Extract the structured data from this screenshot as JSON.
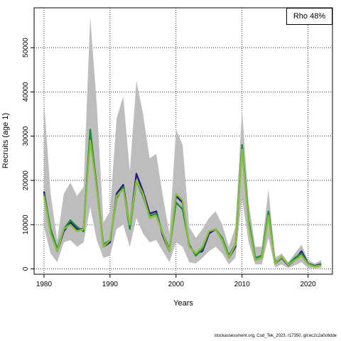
{
  "chart_data": {
    "type": "line",
    "xlabel": "Years",
    "ylabel": "Recruits (age 1)",
    "xlim": [
      1978.5,
      2023.7
    ],
    "ylim": [
      -1200,
      59000
    ],
    "xticks": [
      1980,
      1990,
      2000,
      2010,
      2020
    ],
    "yticks": [
      0,
      10000,
      20000,
      30000,
      40000,
      50000
    ],
    "grid": true,
    "legend": {
      "position": "top-right",
      "text": "Rho 48%"
    },
    "x": [
      1980,
      1981,
      1982,
      1983,
      1984,
      1985,
      1986,
      1987,
      1988,
      1989,
      1990,
      1991,
      1992,
      1993,
      1994,
      1995,
      1996,
      1997,
      1998,
      1999,
      2000,
      2001,
      2002,
      2003,
      2004,
      2005,
      2006,
      2007,
      2008,
      2009,
      2010,
      2011,
      2012,
      2013,
      2014,
      2015,
      2016,
      2017,
      2018,
      2019,
      2020,
      2021,
      2022
    ],
    "confidence_band": {
      "upper": [
        38000,
        17000,
        6500,
        17000,
        19500,
        16500,
        18500,
        57000,
        37000,
        10500,
        13000,
        34000,
        39000,
        22000,
        42500,
        35000,
        25000,
        26000,
        16500,
        8000,
        31500,
        28000,
        9500,
        7000,
        9000,
        11500,
        13000,
        10000,
        5000,
        9500,
        36000,
        15000,
        5000,
        5000,
        18000,
        2500,
        3500,
        1500,
        3500,
        5500,
        2000,
        1200,
        2000
      ],
      "lower": [
        9500,
        3500,
        1500,
        6000,
        6500,
        5000,
        6000,
        14000,
        6500,
        2500,
        3000,
        9000,
        10000,
        5000,
        11500,
        8000,
        6000,
        6500,
        4000,
        1500,
        6000,
        5000,
        1500,
        1200,
        2500,
        4000,
        5000,
        3500,
        1000,
        2500,
        16000,
        6000,
        1000,
        1000,
        7000,
        300,
        1000,
        200,
        800,
        1500,
        200,
        100,
        200
      ]
    },
    "series": [
      {
        "color": "#2a1b7c",
        "values": [
          17500,
          8500,
          4000,
          8500,
          10500,
          9000,
          9000,
          30500,
          18500,
          5000,
          6000,
          17000,
          19000,
          9500,
          21500,
          17500,
          12500,
          13000,
          7500,
          4000,
          16500,
          15000,
          5000,
          3500,
          4000,
          8000,
          9000,
          6500,
          2500,
          5000,
          27500,
          10500,
          2000,
          2500,
          12500,
          1200,
          2500,
          800,
          2000,
          4000,
          1200,
          700,
          1100
        ]
      },
      {
        "color": "#1f8a3b",
        "values": [
          17000,
          9000,
          4500,
          9000,
          11000,
          9500,
          8500,
          31500,
          18000,
          5500,
          6500,
          16000,
          18500,
          9000,
          20000,
          16500,
          12000,
          12500,
          8000,
          4500,
          15000,
          13500,
          5500,
          3000,
          4500,
          8500,
          9000,
          7000,
          3000,
          5500,
          28000,
          11000,
          2500,
          3000,
          13000,
          1500,
          2500,
          1000,
          2500,
          3500,
          1200,
          600,
          1000
        ]
      },
      {
        "color": "#8cbf3f",
        "values": [
          16500,
          8000,
          4000,
          9000,
          10000,
          8500,
          9000,
          29000,
          18000,
          5000,
          6500,
          16500,
          18000,
          10000,
          20000,
          17000,
          11500,
          12000,
          8000,
          4000,
          17000,
          15500,
          5000,
          3500,
          5000,
          8500,
          9000,
          6500,
          2500,
          5500,
          27000,
          10000,
          2000,
          2500,
          12000,
          1200,
          2800,
          900,
          2000,
          3000,
          1000,
          500,
          800
        ]
      }
    ]
  },
  "footer": "stockassessment.org, Cod_Tek_2023, r17350, git:ec2c2a0c6dde"
}
